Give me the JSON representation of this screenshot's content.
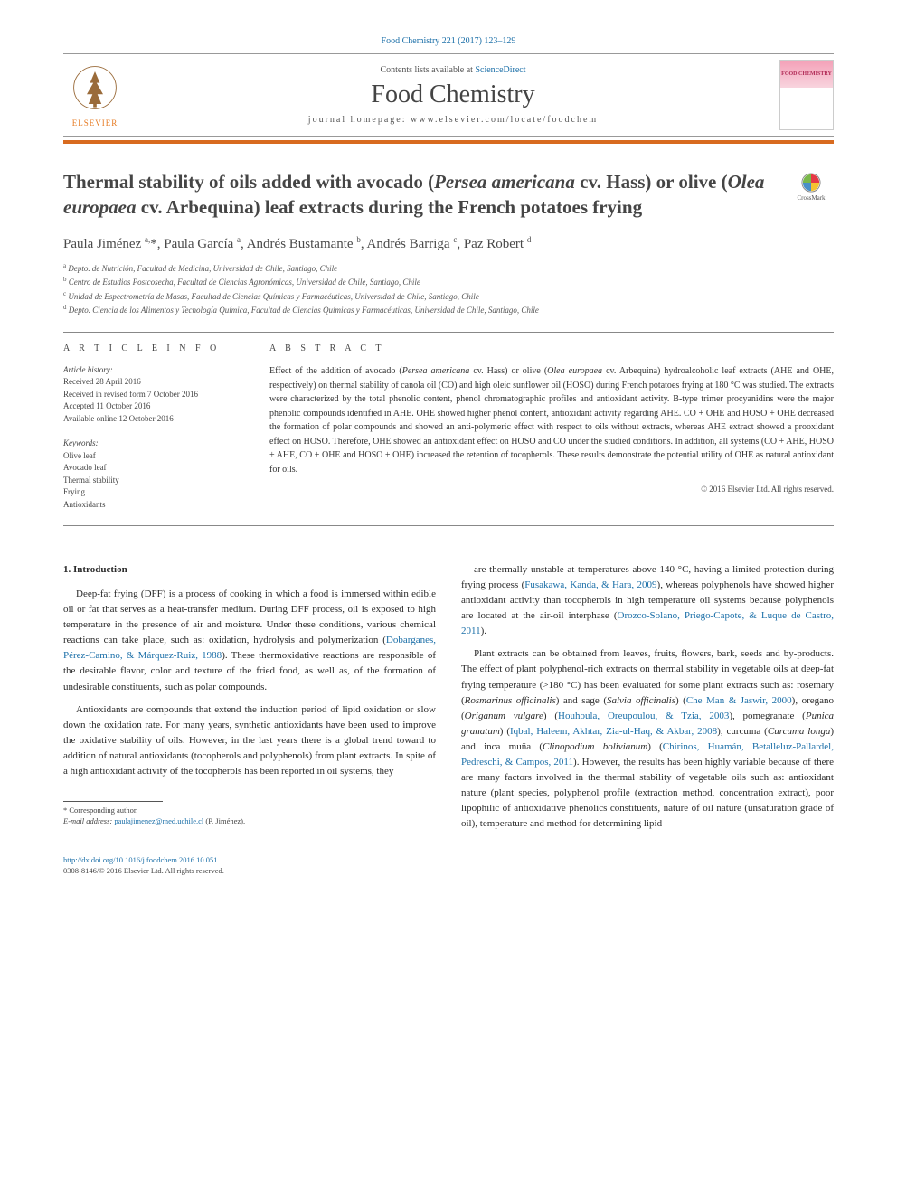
{
  "accent_color": "#d86b1f",
  "link_color": "#1b6fa8",
  "header": {
    "citation_pre": "Food Chemistry 221 (2017) 123–129",
    "contents_line_pre": "Contents lists available at ",
    "contents_link": "ScienceDirect",
    "journal_name": "Food Chemistry",
    "homepage_pre": "journal homepage: ",
    "homepage_url": "www.elsevier.com/locate/foodchem",
    "publisher": "ELSEVIER",
    "cover_brand": "FOOD CHEMISTRY"
  },
  "crossmark_label": "CrossMark",
  "title_parts": {
    "t1": "Thermal stability of oils added with avocado (",
    "sp1": "Persea americana",
    "t2": " cv. Hass) or olive (",
    "sp2": "Olea europaea",
    "t3": " cv. Arbequina) leaf extracts during the French potatoes frying"
  },
  "authors_html": "Paula Jiménez <sup>a,</sup>*, Paula García <sup>a</sup>, Andrés Bustamante <sup>b</sup>, Andrés Barriga <sup>c</sup>, Paz Robert <sup>d</sup>",
  "affiliations": [
    {
      "sup": "a",
      "text": "Depto. de Nutrición, Facultad de Medicina, Universidad de Chile, Santiago, Chile"
    },
    {
      "sup": "b",
      "text": "Centro de Estudios Postcosecha, Facultad de Ciencias Agronómicas, Universidad de Chile, Santiago, Chile"
    },
    {
      "sup": "c",
      "text": "Unidad de Espectrometría de Masas, Facultad de Ciencias Químicas y Farmacéuticas, Universidad de Chile, Santiago, Chile"
    },
    {
      "sup": "d",
      "text": "Depto. Ciencia de los Alimentos y Tecnología Química, Facultad de Ciencias Químicas y Farmacéuticas, Universidad de Chile, Santiago, Chile"
    }
  ],
  "info": {
    "heading": "A R T I C L E   I N F O",
    "history_label": "Article history:",
    "history": [
      "Received 28 April 2016",
      "Received in revised form 7 October 2016",
      "Accepted 11 October 2016",
      "Available online 12 October 2016"
    ],
    "keywords_label": "Keywords:",
    "keywords": [
      "Olive leaf",
      "Avocado leaf",
      "Thermal stability",
      "Frying",
      "Antioxidants"
    ]
  },
  "abstract": {
    "heading": "A B S T R A C T",
    "pieces": {
      "p1": "Effect of the addition of avocado (",
      "i1": "Persea americana",
      "p2": " cv. Hass) or olive (",
      "i2": "Olea europaea",
      "p3": " cv. Arbequina) hydroalcoholic leaf extracts (AHE and OHE, respectively) on thermal stability of canola oil (CO) and high oleic sunflower oil (HOSO) during French potatoes frying at 180 °C was studied. The extracts were characterized by the total phenolic content, phenol chromatographic profiles and antioxidant activity. B-type trimer procyanidins were the major phenolic compounds identified in AHE. OHE showed higher phenol content, antioxidant activity regarding AHE. CO + OHE and HOSO + OHE decreased the formation of polar compounds and showed an anti-polymeric effect with respect to oils without extracts, whereas AHE extract showed a prooxidant effect on HOSO. Therefore, OHE showed an antioxidant effect on HOSO and CO under the studied conditions. In addition, all systems (CO + AHE, HOSO + AHE, CO + OHE and HOSO + OHE) increased the retention of tocopherols. These results demonstrate the potential utility of OHE as natural antioxidant for oils."
    },
    "copyright": "© 2016 Elsevier Ltd. All rights reserved."
  },
  "intro_heading": "1. Introduction",
  "intro_left": [
    {
      "pre": "Deep-fat frying (DFF) is a process of cooking in which a food is immersed within edible oil or fat that serves as a heat-transfer medium. During DFF process, oil is exposed to high temperature in the presence of air and moisture. Under these conditions, various chemical reactions can take place, such as: oxidation, hydrolysis and polymerization (",
      "link": "Dobarganes, Pérez-Camino, & Márquez-Ruiz, 1988",
      "post": "). These thermoxidative reactions are responsible of the desirable flavor, color and texture of the fried food, as well as, of the formation of undesirable constituents, such as polar compounds."
    },
    {
      "pre": "Antioxidants are compounds that extend the induction period of lipid oxidation or slow down the oxidation rate. For many years, synthetic antioxidants have been used to improve the oxidative stability of oils. However, in the last years there is a global trend toward to addition of natural antioxidants (tocopherols and polyphenols) from plant extracts. In spite of a high antioxidant activity of the tocopherols has been reported in oil systems, they",
      "link": "",
      "post": ""
    }
  ],
  "intro_right": [
    {
      "segments": [
        {
          "t": "are thermally unstable at temperatures above 140 °C, having a limited protection during frying process ("
        },
        {
          "link": "Fusakawa, Kanda, & Hara, 2009"
        },
        {
          "t": "), whereas polyphenols have showed higher antioxidant activity than tocopherols in high temperature oil systems because polyphenols are located at the air-oil interphase ("
        },
        {
          "link": "Orozco-Solano, Priego-Capote, & Luque de Castro, 2011"
        },
        {
          "t": ")."
        }
      ]
    },
    {
      "segments": [
        {
          "t": "Plant extracts can be obtained from leaves, fruits, flowers, bark, seeds and by-products. The effect of plant polyphenol-rich extracts on thermal stability in vegetable oils at deep-fat frying temperature (>180 °C) has been evaluated for some plant extracts such as: rosemary ("
        },
        {
          "i": "Rosmarinus officinalis"
        },
        {
          "t": ") and sage ("
        },
        {
          "i": "Salvia officinalis"
        },
        {
          "t": ") ("
        },
        {
          "link": "Che Man & Jaswir, 2000"
        },
        {
          "t": "), oregano ("
        },
        {
          "i": "Origanum vulgare"
        },
        {
          "t": ") ("
        },
        {
          "link": "Houhoula, Oreupoulou, & Tzia, 2003"
        },
        {
          "t": "), pomegranate ("
        },
        {
          "i": "Punica granatum"
        },
        {
          "t": ") ("
        },
        {
          "link": "Iqbal, Haleem, Akhtar, Zia-ul-Haq, & Akbar, 2008"
        },
        {
          "t": "), curcuma ("
        },
        {
          "i": "Curcuma longa"
        },
        {
          "t": ") and inca muña ("
        },
        {
          "i": "Clinopodium bolivianum"
        },
        {
          "t": ") ("
        },
        {
          "link": "Chirinos, Huamán, Betalleluz-Pallardel, Pedreschi, & Campos, 2011"
        },
        {
          "t": "). However, the results has been highly variable because of there are many factors involved in the thermal stability of vegetable oils such as: antioxidant nature (plant species, polyphenol profile (extraction method, concentration extract), poor lipophilic of antioxidative phenolics constituents, nature of oil nature (unsaturation grade of oil), temperature and method for determining lipid"
        }
      ]
    }
  ],
  "footnotes": {
    "corr_label": "* Corresponding author.",
    "email_label": "E-mail address: ",
    "email": "paulajimenez@med.uchile.cl",
    "email_attr": " (P. Jiménez)."
  },
  "bottom": {
    "doi": "http://dx.doi.org/10.1016/j.foodchem.2016.10.051",
    "issn_line": "0308-8146/© 2016 Elsevier Ltd. All rights reserved."
  }
}
